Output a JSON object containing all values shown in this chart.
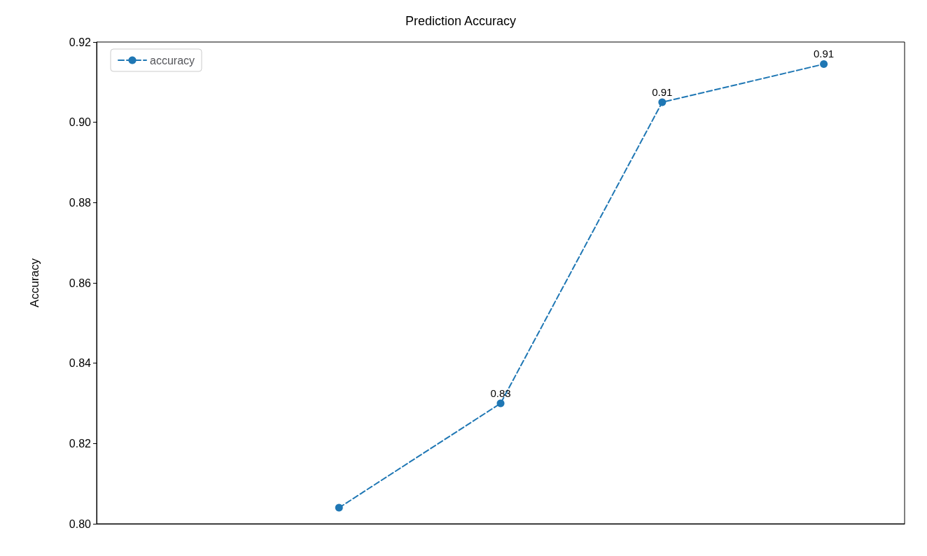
{
  "chart_data": {
    "type": "line",
    "title": "Prediction Accuracy",
    "ylabel": "Accuracy",
    "categories": [
      null,
      null,
      null,
      null,
      null
    ],
    "series": [
      {
        "name": "accuracy",
        "color": "#1f77b4",
        "values": [
          null,
          0.804,
          0.83,
          0.905,
          0.9145
        ],
        "value_labels": [
          null,
          null,
          "0.83",
          "0.91",
          "0.91"
        ]
      }
    ],
    "ylim": [
      0.8,
      0.92
    ],
    "yticks": [
      {
        "value": 0.8,
        "label": "0.80"
      },
      0.82,
      0.84,
      0.86,
      0.88,
      {
        "value": 0.9,
        "label": "0.90"
      },
      0.92
    ],
    "grid": false,
    "legend": "top left",
    "marker": "circle",
    "line_style": "dashed",
    "tick_labels": "y"
  }
}
